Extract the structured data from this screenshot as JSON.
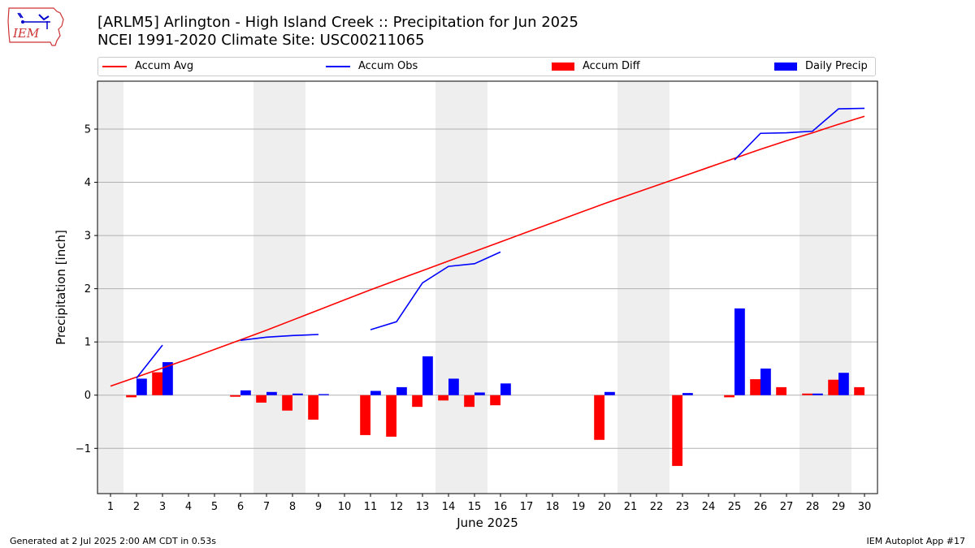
{
  "header": {
    "title": "[ARLM5] Arlington - High Island Creek :: Precipitation for Jun 2025",
    "subtitle": "NCEI 1991-2020 Climate Site: USC00211065",
    "logo_text": "IEM"
  },
  "legend": {
    "placement": "top",
    "items": [
      {
        "label": "Accum Avg",
        "kind": "line",
        "color": "#ff0000"
      },
      {
        "label": "Accum Obs",
        "kind": "line",
        "color": "#0000ff"
      },
      {
        "label": "Accum Diff",
        "kind": "box",
        "color": "#ff0000"
      },
      {
        "label": "Daily Precip",
        "kind": "box",
        "color": "#0000ff"
      }
    ]
  },
  "footer": {
    "left": "Generated at 2 Jul 2025 2:00 AM CDT in 0.53s",
    "right": "IEM Autoplot App #17"
  },
  "chart_data": {
    "type": "bar",
    "xlabel": "June 2025",
    "ylabel": "Precipitation [inch]",
    "xlim": [
      0.5,
      30.5
    ],
    "ylim": [
      -1.85,
      5.9
    ],
    "yticks": [
      -1,
      0,
      1,
      2,
      3,
      4,
      5
    ],
    "ytick_labels": [
      "−1",
      "0",
      "1",
      "2",
      "3",
      "4",
      "5"
    ],
    "grid": "horizontal",
    "weekend_shading": [
      [
        0.5,
        1.5
      ],
      [
        6.5,
        8.5
      ],
      [
        13.5,
        15.5
      ],
      [
        20.5,
        22.5
      ],
      [
        27.5,
        29.5
      ]
    ],
    "shade_color": "#eeeeee",
    "days": [
      1,
      2,
      3,
      4,
      5,
      6,
      7,
      8,
      9,
      10,
      11,
      12,
      13,
      14,
      15,
      16,
      17,
      18,
      19,
      20,
      21,
      22,
      23,
      24,
      25,
      26,
      27,
      28,
      29,
      30
    ],
    "series": [
      {
        "name": "Accum Avg",
        "type": "line",
        "color": "#ff0000",
        "points": [
          [
            1,
            0.17
          ],
          [
            2,
            0.34
          ],
          [
            3,
            0.51
          ],
          [
            4,
            0.68
          ],
          [
            5,
            0.86
          ],
          [
            6,
            1.04
          ],
          [
            7,
            1.22
          ],
          [
            8,
            1.41
          ],
          [
            9,
            1.6
          ],
          [
            10,
            1.79
          ],
          [
            11,
            1.98
          ],
          [
            12,
            2.16
          ],
          [
            13,
            2.34
          ],
          [
            14,
            2.52
          ],
          [
            15,
            2.7
          ],
          [
            16,
            2.88
          ],
          [
            17,
            3.06
          ],
          [
            18,
            3.24
          ],
          [
            19,
            3.42
          ],
          [
            20,
            3.6
          ],
          [
            21,
            3.77
          ],
          [
            22,
            3.94
          ],
          [
            23,
            4.11
          ],
          [
            24,
            4.28
          ],
          [
            25,
            4.45
          ],
          [
            26,
            4.62
          ],
          [
            27,
            4.78
          ],
          [
            28,
            4.93
          ],
          [
            29,
            5.09
          ],
          [
            30,
            5.24
          ]
        ]
      },
      {
        "name": "Accum Obs",
        "type": "line",
        "color": "#0000ff",
        "segments": [
          [
            [
              2,
              0.32
            ],
            [
              3,
              0.94
            ]
          ],
          [
            [
              6,
              1.03
            ],
            [
              7,
              1.09
            ],
            [
              8,
              1.12
            ],
            [
              9,
              1.14
            ]
          ],
          [
            [
              11,
              1.23
            ],
            [
              12,
              1.38
            ],
            [
              13,
              2.11
            ],
            [
              14,
              2.42
            ],
            [
              15,
              2.47
            ],
            [
              16,
              2.69
            ]
          ],
          [
            [
              25,
              4.42
            ],
            [
              26,
              4.92
            ],
            [
              27,
              4.93
            ],
            [
              28,
              4.96
            ],
            [
              29,
              5.38
            ],
            [
              30,
              5.39
            ]
          ]
        ]
      },
      {
        "name": "Accum Diff",
        "type": "bar",
        "color": "#ff0000",
        "values": [
          0,
          -0.04,
          0.43,
          0,
          0,
          -0.03,
          -0.14,
          -0.29,
          -0.46,
          0,
          -0.75,
          -0.78,
          -0.22,
          -0.1,
          -0.22,
          -0.19,
          0,
          0,
          0,
          -0.84,
          0,
          0,
          -1.33,
          0,
          -0.04,
          0.3,
          0.15,
          0.03,
          0.29,
          0.15
        ]
      },
      {
        "name": "Daily Precip",
        "type": "bar",
        "color": "#0000ff",
        "values": [
          0,
          0.31,
          0.62,
          0,
          0,
          0.09,
          0.06,
          0.03,
          0.02,
          0,
          0.08,
          0.15,
          0.73,
          0.31,
          0.05,
          0.22,
          0,
          0,
          0,
          0.06,
          0,
          0,
          0.04,
          0,
          1.63,
          0.5,
          0,
          0.03,
          0.42,
          0
        ]
      }
    ]
  }
}
